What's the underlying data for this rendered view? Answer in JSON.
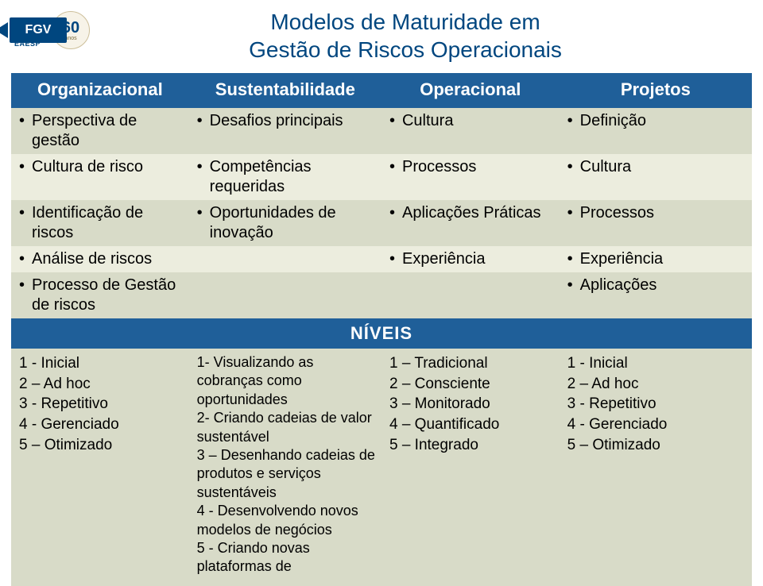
{
  "title": {
    "line1": "Modelos de Maturidade em",
    "line2": "Gestão de Riscos Operacionais"
  },
  "logo": {
    "fgv": "FGV",
    "eaesp": "EAESP",
    "sixty": "60",
    "anos": "anos"
  },
  "colors": {
    "header_bg": "#1f5f99",
    "header_fg": "#ffffff",
    "band_a": "#d8dbc8",
    "band_b": "#ecedde",
    "title_color": "#00467f"
  },
  "headers": {
    "c1": "Organizacional",
    "c2": "Sustentabilidade",
    "c3": "Operacional",
    "c4": "Projetos"
  },
  "rows": [
    {
      "band": "a",
      "c1": "Perspectiva de gestão",
      "c2": "Desafios principais",
      "c3": "Cultura",
      "c4": "Definição"
    },
    {
      "band": "b",
      "c1": "Cultura de risco",
      "c2": "Competências requeridas",
      "c3": "Processos",
      "c4": "Cultura"
    },
    {
      "band": "a",
      "c1": "Identificação de riscos",
      "c2": "Oportunidades de inovação",
      "c3": "Aplicações Práticas",
      "c4": "Processos"
    },
    {
      "band": "b",
      "c1": "Análise de riscos",
      "c2": "",
      "c3": "Experiência",
      "c4": "Experiência"
    },
    {
      "band": "a",
      "c1": "Processo de Gestão de riscos",
      "c2": "",
      "c3": "",
      "c4": "Aplicações"
    }
  ],
  "niveis_label": "NÍVEIS",
  "levels": {
    "c1": "1 - Inicial\n2 – Ad hoc\n3 - Repetitivo\n4 - Gerenciado\n5 – Otimizado",
    "c2": "1- Visualizando as cobranças como oportunidades\n2- Criando cadeias de valor sustentável\n3 – Desenhando cadeias  de produtos e serviços sustentáveis\n4 - Desenvolvendo novos modelos de negócios\n5 - Criando novas plataformas de",
    "c3": "1 – Tradicional\n2 – Consciente\n3 – Monitorado\n4 – Quantificado\n5 – Integrado",
    "c4": "1 - Inicial\n2 – Ad hoc\n3 - Repetitivo\n4 - Gerenciado\n5 – Otimizado"
  }
}
